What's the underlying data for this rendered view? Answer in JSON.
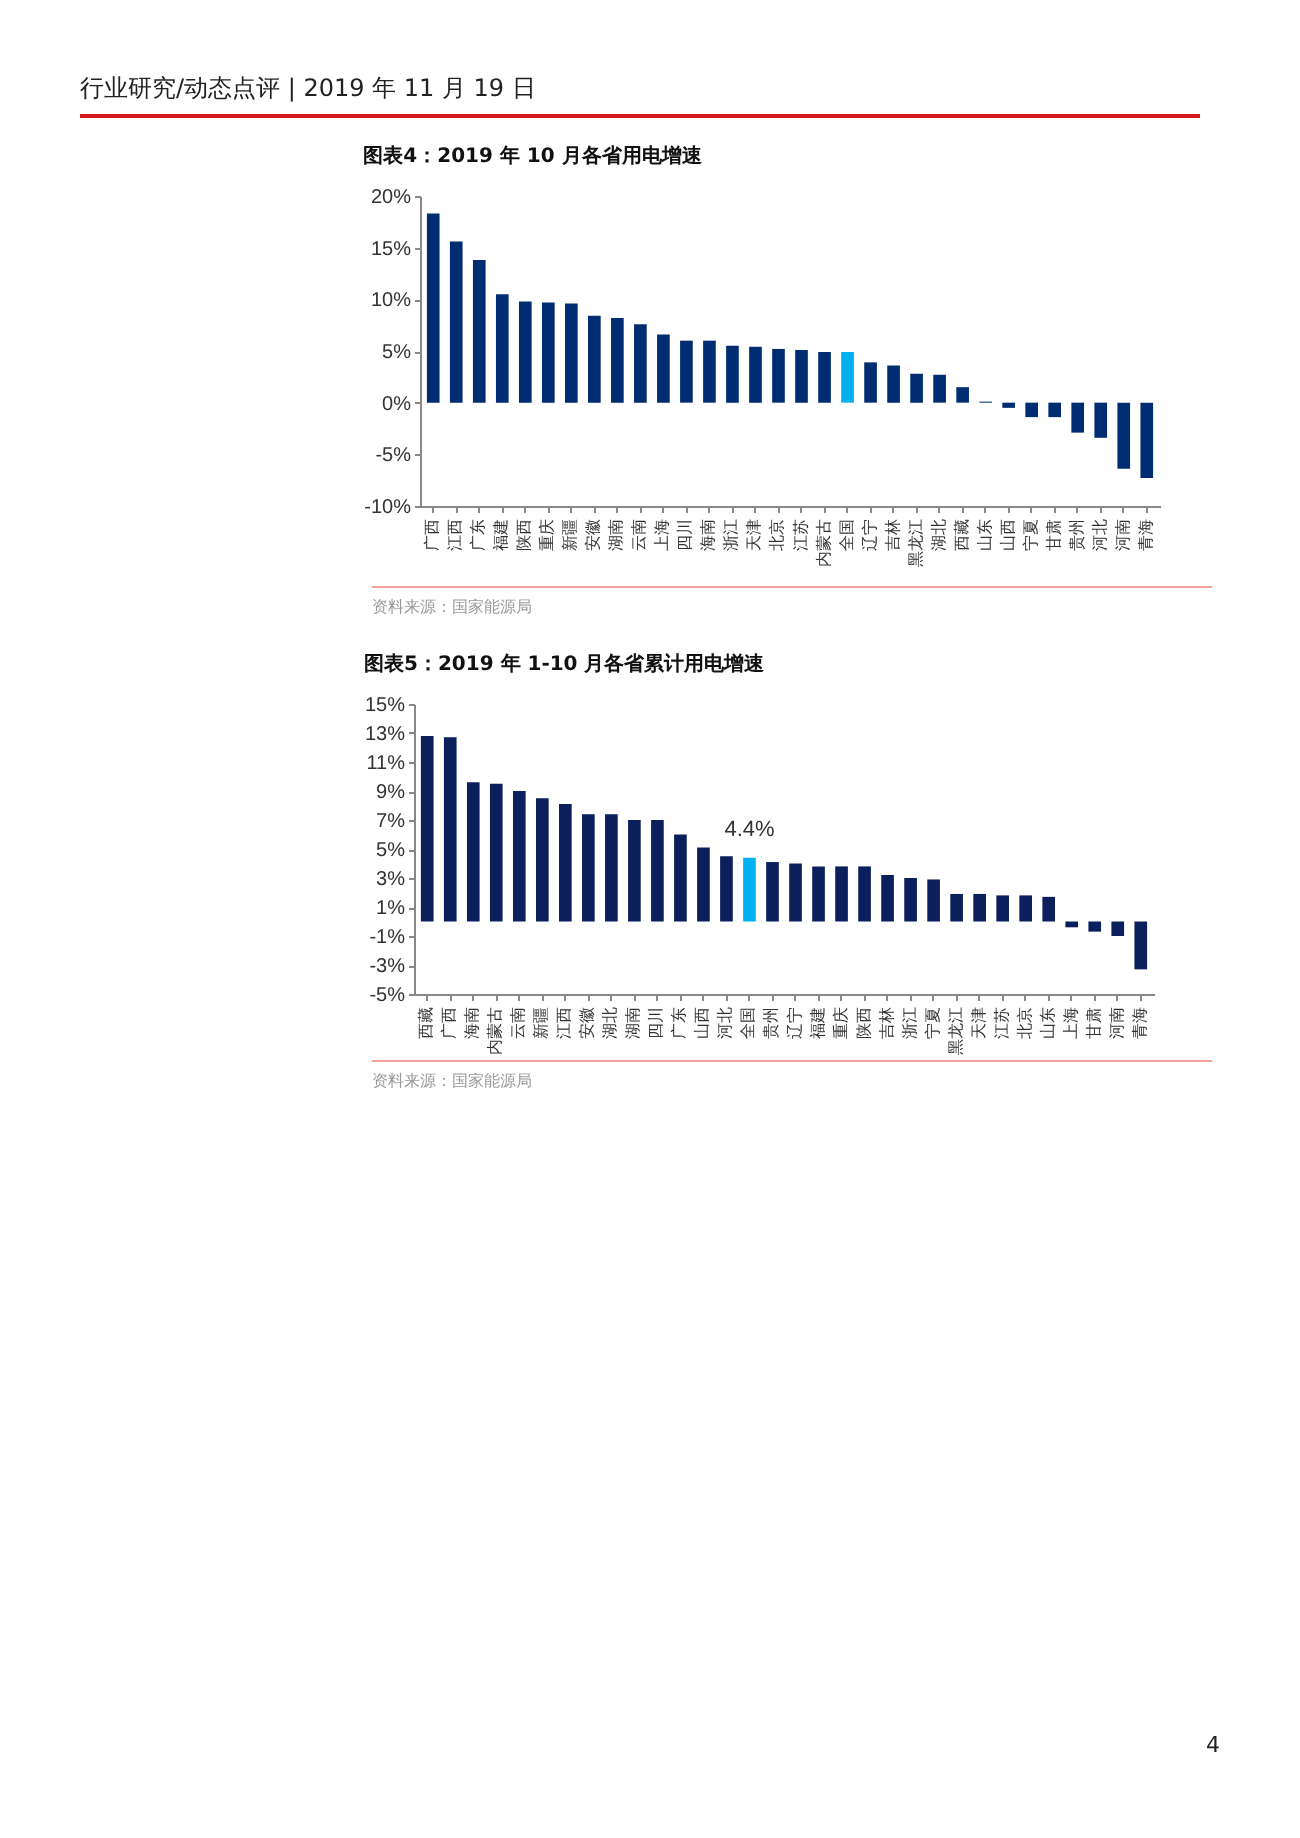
{
  "chart_data": [
    {
      "type": "bar",
      "title": "图表4：2019 年 10 月各省用电增速",
      "categories": [
        "广西",
        "江西",
        "广东",
        "福建",
        "陕西",
        "重庆",
        "新疆",
        "安徽",
        "湖南",
        "云南",
        "上海",
        "四川",
        "海南",
        "浙江",
        "天津",
        "北京",
        "江苏",
        "内蒙古",
        "全国",
        "辽宁",
        "吉林",
        "黑龙江",
        "湖北",
        "西藏",
        "山东",
        "山西",
        "宁夏",
        "甘肃",
        "贵州",
        "河北",
        "河南",
        "青海"
      ],
      "values": [
        18.3,
        15.6,
        13.8,
        10.5,
        9.8,
        9.7,
        9.6,
        8.4,
        8.2,
        7.6,
        6.6,
        6.0,
        6.0,
        5.5,
        5.4,
        5.2,
        5.1,
        4.9,
        4.9,
        3.9,
        3.6,
        2.8,
        2.7,
        1.5,
        0.1,
        -0.5,
        -1.4,
        -1.4,
        -2.9,
        -3.4,
        -6.4,
        -7.3
      ],
      "colors": [
        "#002d72",
        "#002d72",
        "#002d72",
        "#002d72",
        "#002d72",
        "#002d72",
        "#002d72",
        "#002d72",
        "#002d72",
        "#002d72",
        "#002d72",
        "#002d72",
        "#002d72",
        "#002d72",
        "#002d72",
        "#002d72",
        "#002d72",
        "#002d72",
        "#00b0f0",
        "#002d72",
        "#002d72",
        "#002d72",
        "#002d72",
        "#002d72",
        "#002d72",
        "#002d72",
        "#002d72",
        "#002d72",
        "#002d72",
        "#002d72",
        "#002d72",
        "#002d72"
      ],
      "ylim": [
        -10,
        20
      ],
      "yticks": [
        {
          "value": -10,
          "label": "-10%"
        },
        {
          "value": -5,
          "label": "-5%"
        },
        {
          "value": 0,
          "label": "0%"
        },
        {
          "value": 5,
          "label": "5%"
        },
        {
          "value": 10,
          "label": "10%"
        },
        {
          "value": 15,
          "label": "15%"
        },
        {
          "value": 20,
          "label": "20%"
        }
      ],
      "grid": false,
      "annotations": [
        "行业研究/动态点评 | 2019 年 11 月 19 日",
        "资料来源：国家能源局"
      ]
    },
    {
      "type": "bar",
      "title": "图表5：2019 年 1-10 月各省累计用电增速",
      "categories": [
        "西藏",
        "广西",
        "海南",
        "内蒙古",
        "云南",
        "新疆",
        "江西",
        "安徽",
        "湖北",
        "湖南",
        "四川",
        "广东",
        "山西",
        "河北",
        "全国",
        "贵州",
        "辽宁",
        "福建",
        "重庆",
        "陕西",
        "吉林",
        "浙江",
        "宁夏",
        "黑龙江",
        "天津",
        "江苏",
        "北京",
        "山东",
        "上海",
        "甘肃",
        "河南",
        "青海"
      ],
      "values": [
        12.8,
        12.7,
        9.6,
        9.5,
        9.0,
        8.5,
        8.1,
        7.4,
        7.4,
        7.0,
        7.0,
        6.0,
        5.1,
        4.5,
        4.4,
        4.1,
        4.0,
        3.8,
        3.8,
        3.8,
        3.2,
        3.0,
        2.9,
        1.9,
        1.9,
        1.8,
        1.8,
        1.7,
        -0.4,
        -0.7,
        -1.0,
        -3.3
      ],
      "colors": [
        "#0a1f5c",
        "#0a1f5c",
        "#0a1f5c",
        "#0a1f5c",
        "#0a1f5c",
        "#0a1f5c",
        "#0a1f5c",
        "#0a1f5c",
        "#0a1f5c",
        "#0a1f5c",
        "#0a1f5c",
        "#0a1f5c",
        "#0a1f5c",
        "#0a1f5c",
        "#00b0f0",
        "#0a1f5c",
        "#0a1f5c",
        "#0a1f5c",
        "#0a1f5c",
        "#0a1f5c",
        "#0a1f5c",
        "#0a1f5c",
        "#0a1f5c",
        "#0a1f5c",
        "#0a1f5c",
        "#0a1f5c",
        "#0a1f5c",
        "#0a1f5c",
        "#0a1f5c",
        "#0a1f5c",
        "#0a1f5c",
        "#0a1f5c"
      ],
      "ylim": [
        -5,
        15
      ],
      "tick_labels": true,
      "yticks": [
        {
          "value": -5,
          "label": "-5%"
        },
        {
          "value": -3,
          "label": "-3%"
        },
        {
          "value": -1,
          "label": "-1%"
        },
        {
          "value": 1,
          "label": "1%"
        },
        {
          "value": 3,
          "label": "3%"
        },
        {
          "value": 5,
          "label": "5%"
        },
        {
          "value": 7,
          "label": "7%"
        },
        {
          "value": 9,
          "label": "9%"
        },
        {
          "value": 11,
          "label": "11%"
        },
        {
          "value": 13,
          "label": "13%"
        },
        {
          "value": 15,
          "label": "15%"
        }
      ],
      "grid": false,
      "annotations": [
        {
          "text": "4.4%",
          "x": "全国",
          "y": 4.4
        },
        "资料来源：国家能源局",
        "4"
      ]
    }
  ]
}
